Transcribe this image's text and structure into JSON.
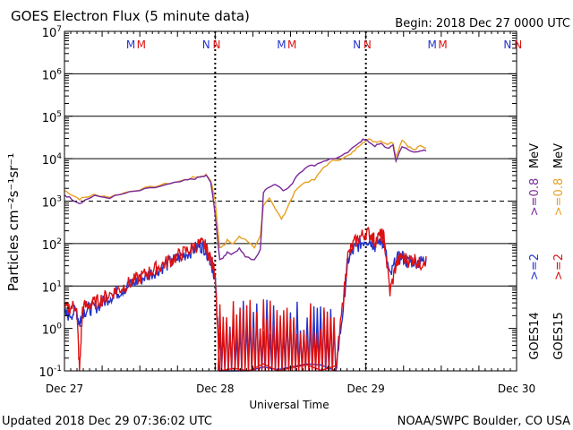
{
  "chart_data": {
    "type": "line",
    "title": "GOES Electron Flux (5 minute data)",
    "begin_label": "Begin: 2018 Dec 27 0000 UTC",
    "updated_label": "Updated 2018 Dec 29 07:36:02 UTC",
    "credit_label": "NOAA/SWPC Boulder, CO USA",
    "xlabel": "Universal Time",
    "ylabel": "Particles cm⁻²s⁻¹sr⁻¹",
    "xlim": [
      0,
      3
    ],
    "ylim_log10": [
      -1,
      7
    ],
    "x_ticks": [
      {
        "x": 0,
        "label": "Dec 27"
      },
      {
        "x": 1,
        "label": "Dec 28"
      },
      {
        "x": 2,
        "label": "Dec 29"
      },
      {
        "x": 3,
        "label": "Dec 30"
      }
    ],
    "y_ticks": [
      {
        "exp": -1,
        "base": "10",
        "sup": "-1"
      },
      {
        "exp": 0,
        "base": "10",
        "sup": "0"
      },
      {
        "exp": 1,
        "base": "10",
        "sup": "1"
      },
      {
        "exp": 2,
        "base": "10",
        "sup": "2"
      },
      {
        "exp": 3,
        "base": "10",
        "sup": "3"
      },
      {
        "exp": 4,
        "base": "10",
        "sup": "4"
      },
      {
        "exp": 5,
        "base": "10",
        "sup": "5"
      },
      {
        "exp": 6,
        "base": "10",
        "sup": "6"
      },
      {
        "exp": 7,
        "base": "10",
        "sup": "7"
      }
    ],
    "gridlines_log10": [
      {
        "exp": 1,
        "style": "solid"
      },
      {
        "exp": 2,
        "style": "solid"
      },
      {
        "exp": 3,
        "style": "dashed"
      },
      {
        "exp": 4,
        "style": "solid"
      },
      {
        "exp": 5,
        "style": "solid"
      },
      {
        "exp": 6,
        "style": "solid"
      }
    ],
    "day_markers_x": [
      1,
      2
    ],
    "markers": [
      {
        "x": 0.44,
        "letter": "M",
        "color": "#2233cc"
      },
      {
        "x": 0.51,
        "letter": "M",
        "color": "#dd1111"
      },
      {
        "x": 0.94,
        "letter": "N",
        "color": "#2233cc"
      },
      {
        "x": 1.01,
        "letter": "N",
        "color": "#dd1111"
      },
      {
        "x": 1.44,
        "letter": "M",
        "color": "#2233cc"
      },
      {
        "x": 1.51,
        "letter": "M",
        "color": "#dd1111"
      },
      {
        "x": 1.94,
        "letter": "N",
        "color": "#2233cc"
      },
      {
        "x": 2.01,
        "letter": "N",
        "color": "#dd1111"
      },
      {
        "x": 2.44,
        "letter": "M",
        "color": "#2233cc"
      },
      {
        "x": 2.51,
        "letter": "M",
        "color": "#dd1111"
      },
      {
        "x": 2.94,
        "letter": "N",
        "color": "#2233cc"
      },
      {
        "x": 3.01,
        "letter": "N",
        "color": "#dd1111"
      }
    ],
    "legend": {
      "goes14": "GOES14",
      "goes15": "GOES15",
      "ge2_14": ">=2",
      "ge2_15": ">=2",
      "ge08_14": ">=0.8",
      "ge08_15": ">=0.8",
      "mev": "MeV",
      "colors": {
        "ge2_14": "#2233cc",
        "ge2_15": "#dd1111",
        "ge08_14": "#7a2a9a",
        "ge08_15": "#e8a020"
      }
    },
    "series": [
      {
        "name": "GOES15 >=0.8 MeV",
        "color": "#e8a020",
        "x": [
          0.0,
          0.05,
          0.1,
          0.15,
          0.2,
          0.3,
          0.4,
          0.5,
          0.6,
          0.7,
          0.8,
          0.85,
          0.9,
          0.94,
          0.97,
          1.0,
          1.03,
          1.06,
          1.08,
          1.12,
          1.16,
          1.2,
          1.26,
          1.3,
          1.32,
          1.36,
          1.4,
          1.44,
          1.46,
          1.5,
          1.54,
          1.6,
          1.66,
          1.72,
          1.78,
          1.84,
          1.9,
          1.94,
          1.98,
          2.02,
          2.06,
          2.1,
          2.14,
          2.18,
          2.2,
          2.24,
          2.28,
          2.32,
          2.36,
          2.4
        ],
        "log10": [
          3.25,
          3.15,
          3.05,
          3.1,
          3.15,
          3.1,
          3.2,
          3.28,
          3.35,
          3.42,
          3.5,
          3.55,
          3.58,
          3.62,
          3.5,
          3.0,
          1.9,
          1.95,
          2.1,
          2.0,
          2.15,
          2.1,
          1.9,
          2.2,
          2.9,
          3.05,
          2.8,
          2.6,
          2.7,
          3.0,
          3.3,
          3.45,
          3.5,
          3.8,
          3.95,
          4.0,
          4.1,
          4.25,
          4.4,
          4.45,
          4.4,
          4.42,
          4.35,
          4.38,
          4.05,
          4.45,
          4.3,
          4.2,
          4.3,
          4.25
        ]
      },
      {
        "name": "GOES14 >=0.8 MeV",
        "color": "#7a2a9a",
        "x": [
          0.0,
          0.05,
          0.1,
          0.15,
          0.2,
          0.3,
          0.4,
          0.5,
          0.6,
          0.7,
          0.8,
          0.85,
          0.9,
          0.94,
          0.97,
          1.0,
          1.03,
          1.06,
          1.08,
          1.12,
          1.16,
          1.2,
          1.26,
          1.3,
          1.32,
          1.36,
          1.4,
          1.44,
          1.46,
          1.5,
          1.54,
          1.6,
          1.66,
          1.72,
          1.78,
          1.84,
          1.9,
          1.94,
          1.98,
          2.02,
          2.06,
          2.1,
          2.14,
          2.18,
          2.2,
          2.24,
          2.28,
          2.32,
          2.36,
          2.4
        ],
        "log10": [
          3.15,
          3.05,
          2.95,
          3.05,
          3.12,
          3.08,
          3.18,
          3.25,
          3.32,
          3.4,
          3.48,
          3.52,
          3.56,
          3.6,
          3.45,
          2.7,
          1.6,
          1.7,
          1.8,
          1.75,
          1.9,
          1.7,
          1.6,
          1.85,
          3.2,
          3.35,
          3.4,
          3.3,
          3.25,
          3.35,
          3.6,
          3.8,
          3.85,
          3.95,
          4.0,
          4.05,
          4.2,
          4.35,
          4.45,
          4.4,
          4.3,
          4.35,
          4.25,
          4.3,
          3.95,
          4.3,
          4.2,
          4.15,
          4.2,
          4.18
        ]
      },
      {
        "name": "GOES14 >=2 MeV",
        "color": "#2233cc",
        "noisy": true,
        "x": [
          0.0,
          0.04,
          0.08,
          0.1,
          0.12,
          0.16,
          0.2,
          0.25,
          0.3,
          0.35,
          0.4,
          0.45,
          0.5,
          0.55,
          0.6,
          0.65,
          0.7,
          0.75,
          0.8,
          0.85,
          0.9,
          0.93,
          0.96,
          1.0,
          1.03,
          1.8,
          1.85,
          1.88,
          1.92,
          1.96,
          2.0,
          2.04,
          2.06,
          2.1,
          2.12,
          2.16,
          2.2,
          2.24,
          2.28,
          2.32,
          2.36,
          2.4
        ],
        "log10": [
          0.3,
          0.35,
          0.4,
          0.1,
          0.4,
          0.45,
          0.5,
          0.6,
          0.75,
          0.85,
          0.95,
          1.05,
          1.15,
          1.25,
          1.35,
          1.45,
          1.55,
          1.65,
          1.75,
          1.85,
          1.95,
          1.9,
          1.7,
          1.2,
          -1.0,
          -1.0,
          0.5,
          1.6,
          1.85,
          2.0,
          2.1,
          2.05,
          1.95,
          2.1,
          2.0,
          1.2,
          1.6,
          1.7,
          1.55,
          1.6,
          1.55,
          1.65
        ]
      },
      {
        "name": "GOES15 >=2 MeV",
        "color": "#dd1111",
        "noisy": true,
        "x": [
          0.0,
          0.04,
          0.08,
          0.1,
          0.12,
          0.16,
          0.2,
          0.25,
          0.3,
          0.35,
          0.4,
          0.45,
          0.5,
          0.55,
          0.6,
          0.65,
          0.7,
          0.75,
          0.8,
          0.85,
          0.9,
          0.93,
          0.96,
          1.0,
          1.03,
          1.8,
          1.85,
          1.88,
          1.92,
          1.96,
          2.0,
          2.04,
          2.06,
          2.1,
          2.12,
          2.16,
          2.2,
          2.24,
          2.28,
          2.32,
          2.36,
          2.4
        ],
        "log10": [
          0.45,
          0.5,
          0.55,
          -1.0,
          0.5,
          0.55,
          0.6,
          0.7,
          0.8,
          0.9,
          1.0,
          1.1,
          1.2,
          1.3,
          1.4,
          1.5,
          1.6,
          1.7,
          1.8,
          1.9,
          2.0,
          1.95,
          1.75,
          1.3,
          -1.0,
          -1.0,
          0.7,
          1.7,
          2.0,
          2.15,
          2.25,
          2.2,
          2.05,
          2.2,
          2.15,
          0.85,
          1.5,
          1.7,
          1.6,
          1.65,
          1.5,
          1.7
        ]
      }
    ]
  }
}
